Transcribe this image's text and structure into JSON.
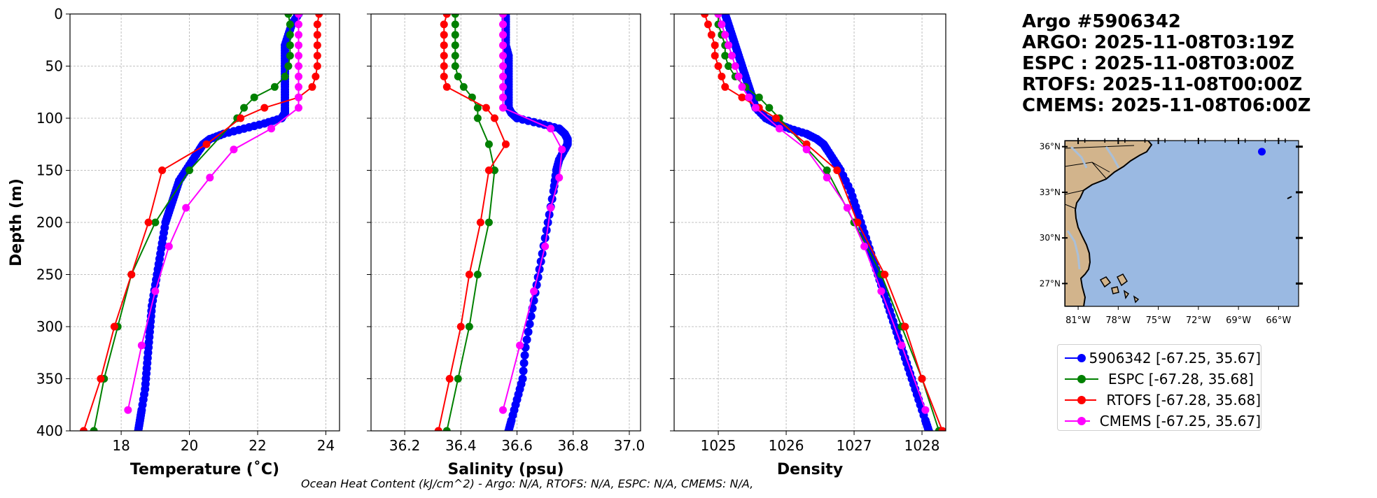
{
  "figure": {
    "info_lines": [
      "Argo #5906342",
      "ARGO: 2025-11-08T03:19Z",
      "ESPC : 2025-11-08T03:00Z",
      "RTOFS: 2025-11-08T00:00Z",
      "CMEMS: 2025-11-08T06:00Z"
    ],
    "footer": "Ocean Heat Content (kJ/cm^2) - Argo: N/A,  RTOFS: N/A,  ESPC: N/A,  CMEMS: N/A,",
    "colors": {
      "argo": "#0000ff",
      "espc": "#008000",
      "rtofs": "#ff0000",
      "cmems": "#ff00ff",
      "land": "#d2b48c",
      "ocean": "#9ab9e2",
      "grid": "#b0b0b0"
    }
  },
  "legend": [
    {
      "label": "5906342 [-67.25, 35.67]",
      "color": "#0000ff"
    },
    {
      "label": "ESPC [-67.28, 35.68]",
      "color": "#008000"
    },
    {
      "label": "RTOFS [-67.28, 35.68]",
      "color": "#ff0000"
    },
    {
      "label": "CMEMS [-67.25, 35.67]",
      "color": "#ff00ff"
    }
  ],
  "chart_data": [
    {
      "type": "line",
      "id": "temperature",
      "xlabel": "Temperature (˚C)",
      "ylabel": "Depth (m)",
      "xlim": [
        16.5,
        24.4
      ],
      "ylim": [
        400,
        0
      ],
      "xticks": [
        18,
        20,
        22,
        24
      ],
      "yticks": [
        0,
        50,
        100,
        150,
        200,
        250,
        300,
        350,
        400
      ],
      "grid": true,
      "series": [
        {
          "name": "5906342",
          "color": "#0000ff",
          "marker_size": 6,
          "depth": [
            0,
            10,
            20,
            30,
            40,
            50,
            60,
            70,
            80,
            90,
            95,
            100,
            105,
            110,
            115,
            120,
            125,
            130,
            140,
            150,
            160,
            170,
            180,
            190,
            200,
            220,
            240,
            260,
            280,
            300,
            320,
            340,
            360,
            380,
            390,
            400
          ],
          "values": [
            23.2,
            23.0,
            22.9,
            22.8,
            22.8,
            22.8,
            22.8,
            22.8,
            22.8,
            22.8,
            22.8,
            22.7,
            22.2,
            21.6,
            21.0,
            20.6,
            20.4,
            20.3,
            20.1,
            19.9,
            19.7,
            19.6,
            19.5,
            19.4,
            19.3,
            19.2,
            19.1,
            19.0,
            18.9,
            18.85,
            18.8,
            18.75,
            18.7,
            18.6,
            18.55,
            18.5
          ]
        },
        {
          "name": "ESPC",
          "color": "#008000",
          "marker_size": 3.5,
          "depth": [
            0,
            10,
            20,
            30,
            40,
            50,
            60,
            70,
            80,
            90,
            100,
            150,
            200,
            250,
            300,
            350,
            400
          ],
          "values": [
            22.9,
            22.95,
            22.95,
            22.95,
            22.95,
            22.9,
            22.8,
            22.5,
            21.9,
            21.6,
            21.4,
            20.0,
            19.0,
            18.3,
            17.9,
            17.5,
            17.2
          ]
        },
        {
          "name": "RTOFS",
          "color": "#ff0000",
          "marker_size": 3.5,
          "depth": [
            0,
            10,
            20,
            30,
            40,
            50,
            60,
            70,
            80,
            90,
            100,
            125,
            150,
            200,
            250,
            300,
            350,
            400
          ],
          "values": [
            23.8,
            23.75,
            23.75,
            23.75,
            23.75,
            23.75,
            23.7,
            23.6,
            23.2,
            22.2,
            21.5,
            20.5,
            19.2,
            18.8,
            18.3,
            17.8,
            17.4,
            16.9
          ]
        },
        {
          "name": "CMEMS",
          "color": "#ff00ff",
          "marker_size": 3.5,
          "depth": [
            0,
            10,
            20,
            30,
            40,
            50,
            60,
            70,
            80,
            90,
            110,
            130,
            157,
            186,
            223,
            266,
            318,
            380
          ],
          "values": [
            23.2,
            23.2,
            23.2,
            23.2,
            23.2,
            23.2,
            23.2,
            23.2,
            23.2,
            23.2,
            22.4,
            21.3,
            20.6,
            19.9,
            19.4,
            19.0,
            18.6,
            18.2
          ]
        }
      ]
    },
    {
      "type": "line",
      "id": "salinity",
      "xlabel": "Salinity (psu)",
      "ylabel": "",
      "xlim": [
        36.08,
        37.04
      ],
      "ylim": [
        400,
        0
      ],
      "xticks": [
        36.2,
        36.4,
        36.6,
        36.8,
        37.0
      ],
      "xtick_labels": [
        "36.2",
        "36.4",
        "36.6",
        "36.8",
        "37.0"
      ],
      "grid": true,
      "series": [
        {
          "name": "5906342",
          "color": "#0000ff",
          "marker_size": 6,
          "depth": [
            0,
            10,
            20,
            30,
            40,
            50,
            60,
            70,
            80,
            90,
            95,
            100,
            105,
            110,
            115,
            120,
            125,
            130,
            140,
            150,
            170,
            200,
            230,
            260,
            290,
            320,
            350,
            370,
            390,
            400
          ],
          "values": [
            36.56,
            36.56,
            36.56,
            36.56,
            36.57,
            36.57,
            36.57,
            36.57,
            36.57,
            36.57,
            36.58,
            36.6,
            36.68,
            36.75,
            36.77,
            36.78,
            36.78,
            36.77,
            36.75,
            36.74,
            36.73,
            36.71,
            36.69,
            36.67,
            36.65,
            36.63,
            36.62,
            36.6,
            36.58,
            36.57
          ]
        },
        {
          "name": "ESPC",
          "color": "#008000",
          "marker_size": 3.5,
          "depth": [
            0,
            10,
            20,
            30,
            40,
            50,
            60,
            70,
            80,
            90,
            100,
            125,
            150,
            200,
            250,
            300,
            350,
            400
          ],
          "values": [
            36.38,
            36.38,
            36.38,
            36.38,
            36.38,
            36.38,
            36.39,
            36.41,
            36.44,
            36.46,
            36.46,
            36.5,
            36.52,
            36.5,
            36.46,
            36.43,
            36.39,
            36.35
          ]
        },
        {
          "name": "RTOFS",
          "color": "#ff0000",
          "marker_size": 3.5,
          "depth": [
            0,
            10,
            20,
            30,
            40,
            50,
            60,
            70,
            90,
            100,
            125,
            150,
            200,
            250,
            300,
            350,
            400
          ],
          "values": [
            36.35,
            36.34,
            36.34,
            36.34,
            36.34,
            36.34,
            36.34,
            36.35,
            36.49,
            36.52,
            36.56,
            36.5,
            36.47,
            36.43,
            36.4,
            36.36,
            36.32
          ]
        },
        {
          "name": "CMEMS",
          "color": "#ff00ff",
          "marker_size": 3.5,
          "depth": [
            0,
            10,
            20,
            30,
            40,
            50,
            60,
            70,
            80,
            90,
            110,
            130,
            157,
            186,
            223,
            266,
            318,
            380
          ],
          "values": [
            36.55,
            36.55,
            36.55,
            36.55,
            36.55,
            36.55,
            36.55,
            36.55,
            36.55,
            36.55,
            36.72,
            36.76,
            36.75,
            36.72,
            36.7,
            36.66,
            36.61,
            36.55
          ]
        }
      ]
    },
    {
      "type": "line",
      "id": "density",
      "xlabel": "Density",
      "ylabel": "",
      "xlim": [
        1024.35,
        1028.35
      ],
      "ylim": [
        400,
        0
      ],
      "xticks": [
        1025,
        1026,
        1027,
        1028
      ],
      "grid": true,
      "series": [
        {
          "name": "5906342",
          "color": "#0000ff",
          "marker_size": 6,
          "depth": [
            0,
            10,
            20,
            30,
            40,
            50,
            60,
            70,
            80,
            90,
            100,
            105,
            110,
            115,
            120,
            125,
            130,
            140,
            150,
            170,
            190,
            210,
            230,
            250,
            270,
            290,
            310,
            330,
            350,
            370,
            390,
            400
          ],
          "values": [
            1025.1,
            1025.15,
            1025.2,
            1025.25,
            1025.3,
            1025.35,
            1025.4,
            1025.45,
            1025.5,
            1025.55,
            1025.7,
            1025.85,
            1026.05,
            1026.3,
            1026.45,
            1026.55,
            1026.6,
            1026.7,
            1026.8,
            1026.95,
            1027.05,
            1027.15,
            1027.25,
            1027.35,
            1027.45,
            1027.55,
            1027.65,
            1027.75,
            1027.85,
            1027.95,
            1028.05,
            1028.1
          ]
        },
        {
          "name": "ESPC",
          "color": "#008000",
          "marker_size": 3.5,
          "depth": [
            0,
            10,
            20,
            30,
            40,
            50,
            60,
            70,
            80,
            90,
            100,
            150,
            200,
            250,
            300,
            350,
            400
          ],
          "values": [
            1025.0,
            1025.0,
            1025.05,
            1025.1,
            1025.1,
            1025.15,
            1025.25,
            1025.4,
            1025.6,
            1025.75,
            1025.9,
            1026.6,
            1027.0,
            1027.4,
            1027.7,
            1028.0,
            1028.25
          ]
        },
        {
          "name": "RTOFS",
          "color": "#ff0000",
          "marker_size": 3.5,
          "depth": [
            0,
            10,
            20,
            30,
            40,
            50,
            60,
            70,
            80,
            90,
            100,
            125,
            150,
            200,
            250,
            300,
            350,
            400
          ],
          "values": [
            1024.8,
            1024.85,
            1024.9,
            1024.95,
            1024.95,
            1025.0,
            1025.05,
            1025.1,
            1025.35,
            1025.6,
            1025.85,
            1026.3,
            1026.75,
            1027.05,
            1027.45,
            1027.75,
            1028.0,
            1028.3
          ]
        },
        {
          "name": "CMEMS",
          "color": "#ff00ff",
          "marker_size": 3.5,
          "depth": [
            0,
            10,
            20,
            30,
            40,
            50,
            60,
            70,
            80,
            90,
            110,
            130,
            157,
            186,
            223,
            266,
            318,
            380
          ],
          "values": [
            1025.0,
            1025.05,
            1025.1,
            1025.15,
            1025.2,
            1025.25,
            1025.3,
            1025.35,
            1025.45,
            1025.55,
            1025.9,
            1026.3,
            1026.6,
            1026.9,
            1027.15,
            1027.4,
            1027.7,
            1028.05
          ]
        }
      ]
    }
  ],
  "map": {
    "lat_labels": [
      "36°N",
      "33°N",
      "30°N",
      "27°N"
    ],
    "lon_labels": [
      "81°W",
      "78°W",
      "75°W",
      "72°W",
      "69°W",
      "66°W"
    ],
    "lat_values": [
      36,
      33,
      30,
      27
    ],
    "lon_values": [
      -81,
      -78,
      -75,
      -72,
      -69,
      -66
    ],
    "extent": {
      "lon": [
        -82.0,
        -64.5
      ],
      "lat": [
        25.5,
        36.4
      ]
    },
    "float_position": {
      "lon": -67.25,
      "lat": 35.67
    }
  }
}
